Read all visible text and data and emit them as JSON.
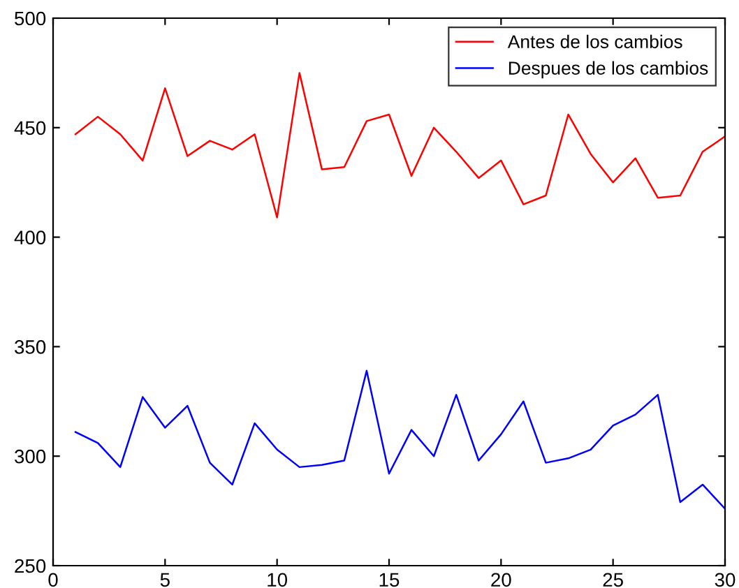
{
  "chart_data": {
    "type": "line",
    "x": [
      1,
      2,
      3,
      4,
      5,
      6,
      7,
      8,
      9,
      10,
      11,
      12,
      13,
      14,
      15,
      16,
      17,
      18,
      19,
      20,
      21,
      22,
      23,
      24,
      25,
      26,
      27,
      28,
      29,
      30
    ],
    "series": [
      {
        "name": "Antes de los cambios",
        "color": "#ff0000",
        "values": [
          447,
          455,
          447,
          435,
          468,
          437,
          444,
          440,
          447,
          409,
          475,
          431,
          432,
          453,
          456,
          428,
          450,
          439,
          427,
          435,
          415,
          419,
          456,
          438,
          425,
          436,
          418,
          419,
          439,
          446
        ]
      },
      {
        "name": "Despues de los cambios",
        "color": "#0000ff",
        "values": [
          311,
          306,
          295,
          327,
          313,
          323,
          297,
          287,
          315,
          303,
          295,
          296,
          298,
          339,
          292,
          312,
          300,
          328,
          298,
          310,
          325,
          297,
          299,
          303,
          314,
          319,
          328,
          279,
          287,
          276
        ]
      }
    ],
    "xlim": [
      0,
      30
    ],
    "xticks": [
      0,
      5,
      10,
      15,
      20,
      25,
      30
    ],
    "ylim": [
      250,
      500
    ],
    "yticks": [
      250,
      300,
      350,
      400,
      450,
      500
    ],
    "grid": false,
    "legend": "top right",
    "marker": "none",
    "line_style": "solid"
  }
}
